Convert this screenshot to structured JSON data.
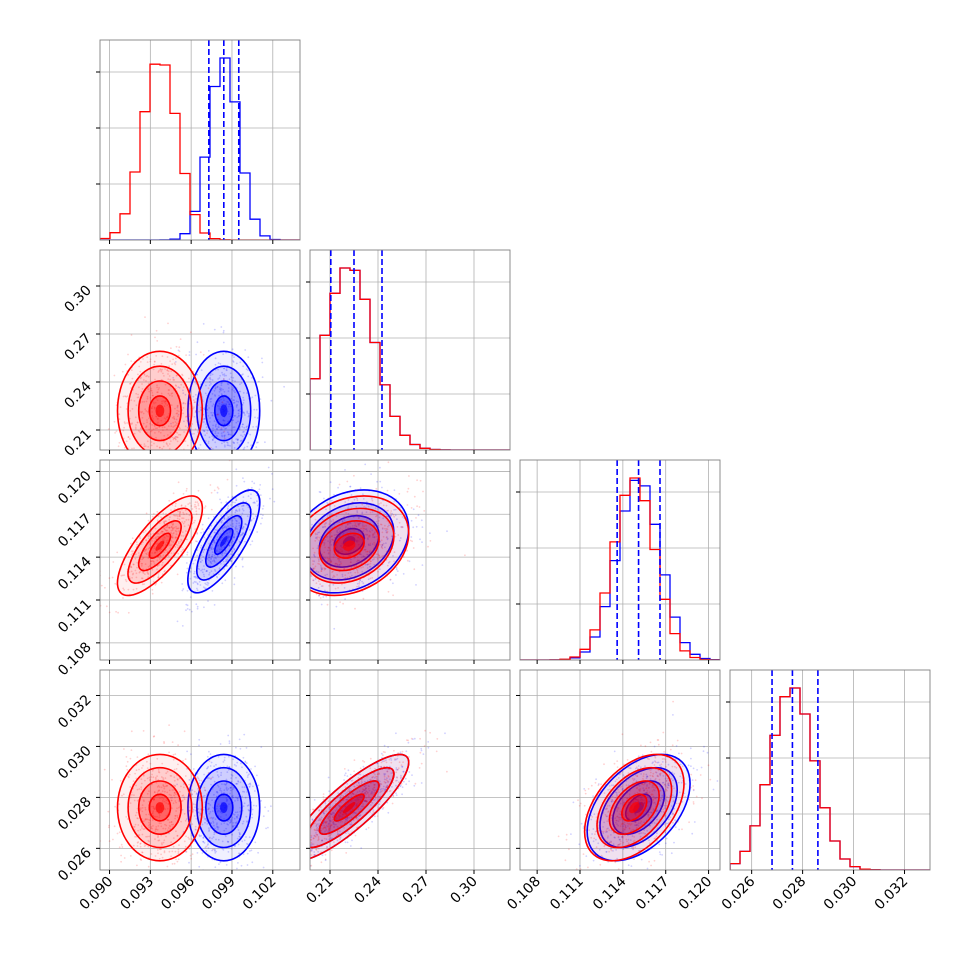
{
  "chart_data": {
    "type": "corner",
    "title": "",
    "colors": {
      "series_a": "#ff0000",
      "series_b": "#0000ff",
      "grid": "#b0b0b0",
      "frame": "#808080"
    },
    "series": [
      {
        "name": "",
        "color": "#ff0000",
        "mean": [
          0.0937,
          0.222,
          0.1148,
          0.0276
        ],
        "sd": [
          0.0013,
          0.0155,
          0.00145,
          0.00087
        ]
      },
      {
        "name": "",
        "color": "#0000ff",
        "mean": [
          0.0984,
          0.222,
          0.1151,
          0.0276
        ],
        "sd": [
          0.0011,
          0.0155,
          0.0015,
          0.00087
        ]
      }
    ],
    "correlations": {
      "1-0": [
        0.0,
        0.0
      ],
      "2-0": [
        0.75,
        0.75
      ],
      "2-1": [
        0.25,
        0.25
      ],
      "3-0": [
        0.0,
        0.0
      ],
      "3-1": [
        0.85,
        0.85
      ],
      "3-2": [
        0.45,
        0.45
      ]
    },
    "quantile_lines": [
      [
        0.0973,
        0.0984,
        0.0995
      ],
      [
        0.2105,
        0.225,
        0.2425
      ],
      [
        0.1136,
        0.1151,
        0.1166
      ],
      [
        0.0268,
        0.0276,
        0.0286
      ]
    ],
    "parameters": [
      {
        "range": [
          0.0893,
          0.104
        ],
        "ticks": [
          0.09,
          0.093,
          0.096,
          0.099,
          0.102
        ],
        "tick_labels": [
          "0.090",
          "0.093",
          "0.096",
          "0.099",
          "0.102"
        ]
      },
      {
        "range": [
          0.1975,
          0.3225
        ],
        "ticks": [
          0.21,
          0.24,
          0.27,
          0.3
        ],
        "tick_labels": [
          "0.21",
          "0.24",
          "0.27",
          "0.30"
        ]
      },
      {
        "range": [
          0.1068,
          0.1208
        ],
        "ticks": [
          0.108,
          0.111,
          0.114,
          0.117,
          0.12
        ],
        "tick_labels": [
          "0.108",
          "0.111",
          "0.114",
          "0.117",
          "0.120"
        ]
      },
      {
        "range": [
          0.02515,
          0.033
        ],
        "ticks": [
          0.026,
          0.028,
          0.03,
          0.032
        ],
        "tick_labels": [
          "0.026",
          "0.028",
          "0.030",
          "0.032"
        ]
      }
    ],
    "y_tick_labels": {
      "1": [
        "0.21",
        "0.24",
        "0.27",
        "0.30"
      ],
      "2": [
        "0.108",
        "0.111",
        "0.114",
        "0.117",
        "0.120"
      ],
      "3": [
        "0.026",
        "0.028",
        "0.030",
        "0.032"
      ]
    },
    "grid": true,
    "legend": "none"
  }
}
